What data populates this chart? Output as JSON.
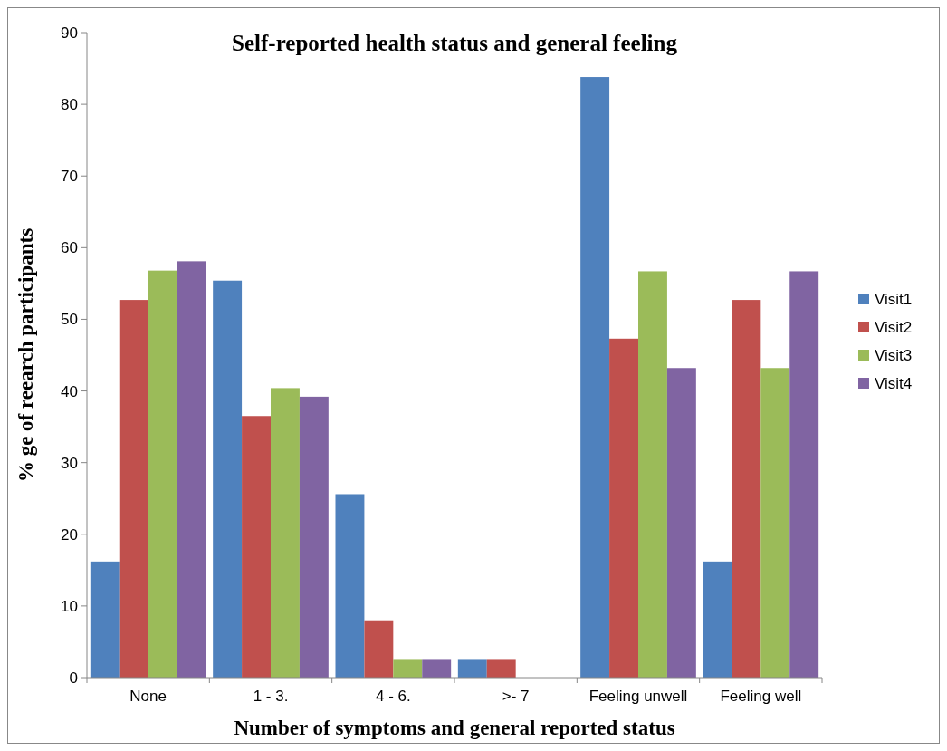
{
  "chart_data": {
    "type": "bar",
    "title": "Self-reported health status and general feeling",
    "xlabel": "Number of symptoms and general reported status",
    "ylabel": "% ge of reearch participants",
    "categories": [
      "None",
      "1 - 3.",
      "4 - 6.",
      ">- 7",
      "Feeling unwell",
      "Feeling well"
    ],
    "series": [
      {
        "name": "Visit1",
        "color": "#4f81bd",
        "values": [
          16.2,
          55.4,
          25.6,
          2.6,
          83.8,
          16.2
        ]
      },
      {
        "name": "Visit2",
        "color": "#c0504d",
        "values": [
          52.7,
          36.5,
          8.0,
          2.6,
          47.3,
          52.7
        ]
      },
      {
        "name": "Visit3",
        "color": "#9bbb59",
        "values": [
          56.8,
          40.4,
          2.6,
          0,
          56.7,
          43.2
        ]
      },
      {
        "name": "Visit4",
        "color": "#8064a2",
        "values": [
          58.1,
          39.2,
          2.6,
          0,
          43.2,
          56.7
        ]
      }
    ],
    "ylim": [
      0,
      90
    ],
    "yticks": [
      0,
      10,
      20,
      30,
      40,
      50,
      60,
      70,
      80,
      90
    ],
    "grid": false,
    "legend": "right"
  }
}
